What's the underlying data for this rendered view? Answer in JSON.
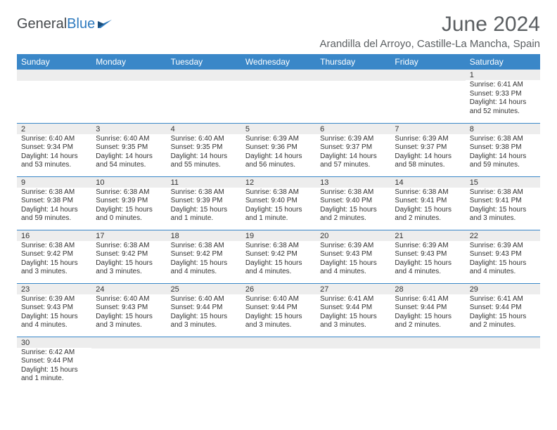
{
  "brand": {
    "name1": "General",
    "name2": "Blue"
  },
  "title": "June 2024",
  "location": "Arandilla del Arroyo, Castille-La Mancha, Spain",
  "colors": {
    "header_bg": "#3a87c8",
    "header_text": "#ffffff",
    "daynum_bg": "#ededed",
    "rule": "#3a87c8",
    "title_text": "#5a5e61",
    "body_text": "#333333"
  },
  "weekdays": [
    "Sunday",
    "Monday",
    "Tuesday",
    "Wednesday",
    "Thursday",
    "Friday",
    "Saturday"
  ],
  "weeks": [
    [
      null,
      null,
      null,
      null,
      null,
      null,
      {
        "n": "1",
        "sr": "Sunrise: 6:41 AM",
        "ss": "Sunset: 9:33 PM",
        "dl": "Daylight: 14 hours and 52 minutes."
      }
    ],
    [
      {
        "n": "2",
        "sr": "Sunrise: 6:40 AM",
        "ss": "Sunset: 9:34 PM",
        "dl": "Daylight: 14 hours and 53 minutes."
      },
      {
        "n": "3",
        "sr": "Sunrise: 6:40 AM",
        "ss": "Sunset: 9:35 PM",
        "dl": "Daylight: 14 hours and 54 minutes."
      },
      {
        "n": "4",
        "sr": "Sunrise: 6:40 AM",
        "ss": "Sunset: 9:35 PM",
        "dl": "Daylight: 14 hours and 55 minutes."
      },
      {
        "n": "5",
        "sr": "Sunrise: 6:39 AM",
        "ss": "Sunset: 9:36 PM",
        "dl": "Daylight: 14 hours and 56 minutes."
      },
      {
        "n": "6",
        "sr": "Sunrise: 6:39 AM",
        "ss": "Sunset: 9:37 PM",
        "dl": "Daylight: 14 hours and 57 minutes."
      },
      {
        "n": "7",
        "sr": "Sunrise: 6:39 AM",
        "ss": "Sunset: 9:37 PM",
        "dl": "Daylight: 14 hours and 58 minutes."
      },
      {
        "n": "8",
        "sr": "Sunrise: 6:38 AM",
        "ss": "Sunset: 9:38 PM",
        "dl": "Daylight: 14 hours and 59 minutes."
      }
    ],
    [
      {
        "n": "9",
        "sr": "Sunrise: 6:38 AM",
        "ss": "Sunset: 9:38 PM",
        "dl": "Daylight: 14 hours and 59 minutes."
      },
      {
        "n": "10",
        "sr": "Sunrise: 6:38 AM",
        "ss": "Sunset: 9:39 PM",
        "dl": "Daylight: 15 hours and 0 minutes."
      },
      {
        "n": "11",
        "sr": "Sunrise: 6:38 AM",
        "ss": "Sunset: 9:39 PM",
        "dl": "Daylight: 15 hours and 1 minute."
      },
      {
        "n": "12",
        "sr": "Sunrise: 6:38 AM",
        "ss": "Sunset: 9:40 PM",
        "dl": "Daylight: 15 hours and 1 minute."
      },
      {
        "n": "13",
        "sr": "Sunrise: 6:38 AM",
        "ss": "Sunset: 9:40 PM",
        "dl": "Daylight: 15 hours and 2 minutes."
      },
      {
        "n": "14",
        "sr": "Sunrise: 6:38 AM",
        "ss": "Sunset: 9:41 PM",
        "dl": "Daylight: 15 hours and 2 minutes."
      },
      {
        "n": "15",
        "sr": "Sunrise: 6:38 AM",
        "ss": "Sunset: 9:41 PM",
        "dl": "Daylight: 15 hours and 3 minutes."
      }
    ],
    [
      {
        "n": "16",
        "sr": "Sunrise: 6:38 AM",
        "ss": "Sunset: 9:42 PM",
        "dl": "Daylight: 15 hours and 3 minutes."
      },
      {
        "n": "17",
        "sr": "Sunrise: 6:38 AM",
        "ss": "Sunset: 9:42 PM",
        "dl": "Daylight: 15 hours and 3 minutes."
      },
      {
        "n": "18",
        "sr": "Sunrise: 6:38 AM",
        "ss": "Sunset: 9:42 PM",
        "dl": "Daylight: 15 hours and 4 minutes."
      },
      {
        "n": "19",
        "sr": "Sunrise: 6:38 AM",
        "ss": "Sunset: 9:42 PM",
        "dl": "Daylight: 15 hours and 4 minutes."
      },
      {
        "n": "20",
        "sr": "Sunrise: 6:39 AM",
        "ss": "Sunset: 9:43 PM",
        "dl": "Daylight: 15 hours and 4 minutes."
      },
      {
        "n": "21",
        "sr": "Sunrise: 6:39 AM",
        "ss": "Sunset: 9:43 PM",
        "dl": "Daylight: 15 hours and 4 minutes."
      },
      {
        "n": "22",
        "sr": "Sunrise: 6:39 AM",
        "ss": "Sunset: 9:43 PM",
        "dl": "Daylight: 15 hours and 4 minutes."
      }
    ],
    [
      {
        "n": "23",
        "sr": "Sunrise: 6:39 AM",
        "ss": "Sunset: 9:43 PM",
        "dl": "Daylight: 15 hours and 4 minutes."
      },
      {
        "n": "24",
        "sr": "Sunrise: 6:40 AM",
        "ss": "Sunset: 9:43 PM",
        "dl": "Daylight: 15 hours and 3 minutes."
      },
      {
        "n": "25",
        "sr": "Sunrise: 6:40 AM",
        "ss": "Sunset: 9:44 PM",
        "dl": "Daylight: 15 hours and 3 minutes."
      },
      {
        "n": "26",
        "sr": "Sunrise: 6:40 AM",
        "ss": "Sunset: 9:44 PM",
        "dl": "Daylight: 15 hours and 3 minutes."
      },
      {
        "n": "27",
        "sr": "Sunrise: 6:41 AM",
        "ss": "Sunset: 9:44 PM",
        "dl": "Daylight: 15 hours and 3 minutes."
      },
      {
        "n": "28",
        "sr": "Sunrise: 6:41 AM",
        "ss": "Sunset: 9:44 PM",
        "dl": "Daylight: 15 hours and 2 minutes."
      },
      {
        "n": "29",
        "sr": "Sunrise: 6:41 AM",
        "ss": "Sunset: 9:44 PM",
        "dl": "Daylight: 15 hours and 2 minutes."
      }
    ],
    [
      {
        "n": "30",
        "sr": "Sunrise: 6:42 AM",
        "ss": "Sunset: 9:44 PM",
        "dl": "Daylight: 15 hours and 1 minute."
      },
      null,
      null,
      null,
      null,
      null,
      null
    ]
  ]
}
